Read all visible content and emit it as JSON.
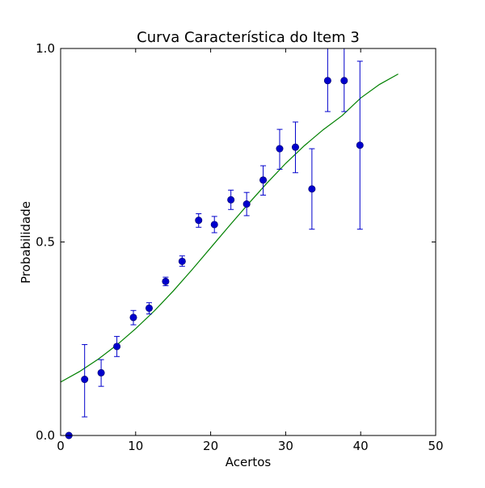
{
  "chart_data": {
    "type": "scatter",
    "title": "Curva Característica do Item 3",
    "xlabel": "Acertos",
    "ylabel": "Probabilidade",
    "xlim": [
      0,
      50
    ],
    "ylim": [
      0.0,
      1.0
    ],
    "xticks": [
      0,
      10,
      20,
      30,
      40,
      50
    ],
    "xtick_labels": [
      "0",
      "10",
      "20",
      "30",
      "40",
      "50"
    ],
    "yticks": [
      0.0,
      0.5,
      1.0
    ],
    "ytick_labels": [
      "0.0",
      "0.5",
      "1.0"
    ],
    "grid": false,
    "colors": {
      "points": "#0000cc",
      "errorbars": "#0000cc",
      "curve": "#008000",
      "axes": "#000000"
    },
    "series": [
      {
        "type": "errorbar",
        "marker": "circle",
        "x": [
          1.1,
          3.2,
          5.4,
          7.5,
          9.7,
          11.8,
          14.0,
          16.2,
          18.4,
          20.5,
          22.7,
          24.8,
          27.0,
          29.2,
          31.3,
          33.5,
          35.6,
          37.8,
          39.9
        ],
        "y": [
          0.0,
          0.145,
          0.162,
          0.23,
          0.305,
          0.329,
          0.398,
          0.45,
          0.556,
          0.545,
          0.609,
          0.598,
          0.66,
          0.741,
          0.745,
          0.637,
          0.917,
          0.917,
          0.75
        ],
        "yerr_low": [
          0.0,
          0.097,
          0.035,
          0.026,
          0.019,
          0.015,
          0.011,
          0.013,
          0.018,
          0.021,
          0.025,
          0.03,
          0.039,
          0.053,
          0.066,
          0.104,
          0.08,
          0.08,
          0.217
        ],
        "yerr_high": [
          0.0,
          0.09,
          0.034,
          0.026,
          0.018,
          0.014,
          0.011,
          0.014,
          0.017,
          0.021,
          0.025,
          0.03,
          0.037,
          0.05,
          0.065,
          0.104,
          0.083,
          0.083,
          0.217
        ]
      },
      {
        "type": "line",
        "x": [
          0,
          2.5,
          5,
          7.5,
          10,
          12.5,
          15,
          17.5,
          20,
          22.5,
          25,
          27.5,
          30,
          32.5,
          35,
          37.5,
          40,
          42.5,
          45
        ],
        "y": [
          0.138,
          0.165,
          0.197,
          0.234,
          0.276,
          0.322,
          0.373,
          0.428,
          0.485,
          0.542,
          0.598,
          0.652,
          0.703,
          0.749,
          0.79,
          0.826,
          0.872,
          0.907,
          0.934
        ]
      }
    ]
  }
}
